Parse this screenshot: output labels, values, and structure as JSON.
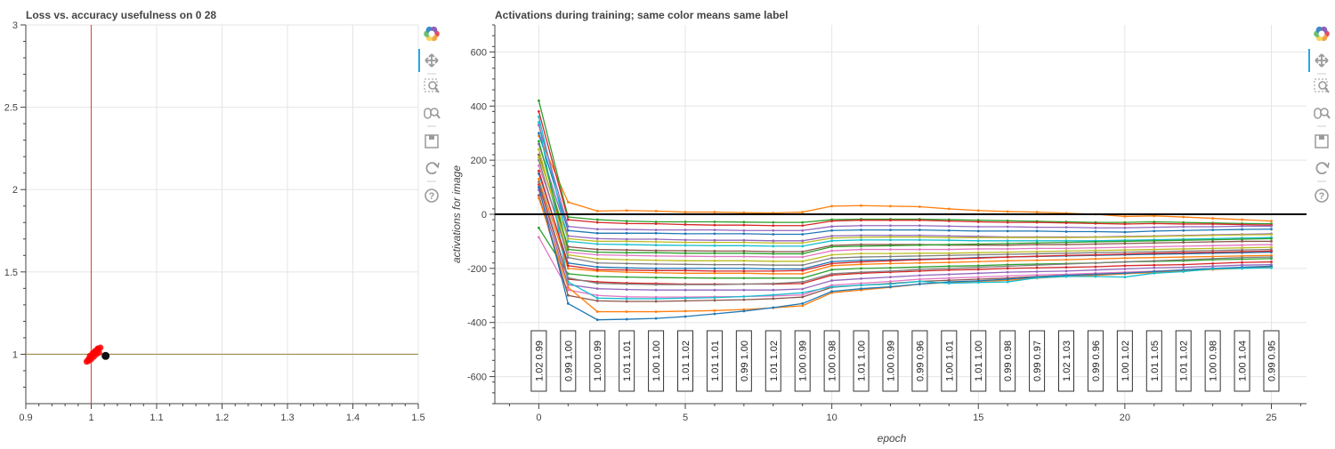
{
  "colors": {
    "grid": "#e5e5e5",
    "axis": "#444444",
    "loss_vline": "#d9534f",
    "acc_hline": "#a09050",
    "scatter": "#ff0000",
    "current_point": "#111111",
    "zero_line": "#000000",
    "active_tool": "#26aae1"
  },
  "toolbars": [
    {
      "tools": [
        "bokeh-logo-icon",
        "pan-icon",
        "box-zoom-icon",
        "wheel-zoom-icon",
        "save-icon",
        "reset-icon",
        "help-icon"
      ],
      "active": "pan-icon"
    },
    {
      "tools": [
        "bokeh-logo-icon",
        "pan-icon",
        "box-zoom-icon",
        "wheel-zoom-icon",
        "save-icon",
        "reset-icon",
        "help-icon"
      ],
      "active": "pan-icon"
    }
  ],
  "chart_data": [
    {
      "type": "scatter",
      "title": "Loss vs. accuracy usefulness on 0 28",
      "xlabel": "",
      "ylabel": "",
      "xlim": [
        0.9,
        1.5
      ],
      "ylim": [
        0.7,
        3.0
      ],
      "xticks": [
        "0.9",
        "1",
        "1.1",
        "1.2",
        "1.3",
        "1.4",
        "1.5"
      ],
      "yticks": [
        "1",
        "1.5",
        "2",
        "2.5",
        "3"
      ],
      "grid": true,
      "reference_lines": {
        "vertical_x": 1.0,
        "horizontal_y": 1.0
      },
      "points": [
        [
          0.993,
          0.955
        ],
        [
          0.995,
          0.965
        ],
        [
          0.997,
          0.975
        ],
        [
          0.999,
          0.985
        ],
        [
          1.001,
          0.992
        ],
        [
          1.003,
          1.0
        ],
        [
          1.005,
          1.008
        ],
        [
          1.007,
          1.015
        ],
        [
          1.009,
          1.022
        ],
        [
          1.011,
          1.03
        ],
        [
          0.996,
          0.96
        ],
        [
          1.0,
          0.97
        ],
        [
          1.004,
          0.985
        ],
        [
          1.008,
          1.0
        ],
        [
          1.012,
          1.01
        ],
        [
          0.998,
          0.99
        ],
        [
          1.002,
          1.005
        ],
        [
          1.006,
          1.02
        ],
        [
          1.01,
          1.035
        ],
        [
          1.014,
          1.04
        ]
      ],
      "current_point": [
        1.022,
        0.99
      ]
    },
    {
      "type": "line",
      "title": "Activations during training; same color means same label",
      "xlabel": "epoch",
      "ylabel": "activations for image",
      "xlim": [
        -1.5,
        26.2
      ],
      "ylim": [
        -700,
        700
      ],
      "xticks": [
        "0",
        "5",
        "10",
        "15",
        "20",
        "25"
      ],
      "yticks": [
        "-600",
        "-400",
        "-200",
        "0",
        "200",
        "400",
        "600"
      ],
      "grid": true,
      "zero_line_y": 0,
      "x": [
        0,
        1,
        2,
        3,
        4,
        5,
        6,
        7,
        8,
        9,
        10,
        11,
        12,
        13,
        14,
        15,
        16,
        17,
        18,
        19,
        20,
        21,
        22,
        23,
        24,
        25
      ],
      "annotations": {
        "x": [
          0,
          1,
          2,
          3,
          4,
          5,
          6,
          7,
          8,
          9,
          10,
          11,
          12,
          13,
          14,
          15,
          16,
          17,
          18,
          19,
          20,
          21,
          22,
          23,
          24,
          25
        ],
        "labels": [
          "1.02  0.99",
          "0.99  1.00",
          "1.00  0.99",
          "1.01  1.01",
          "1.00  1.00",
          "1.01  1.02",
          "1.01  1.01",
          "0.99  1.00",
          "1.01  1.02",
          "1.00  0.99",
          "1.00  0.98",
          "1.01  1.00",
          "1.00  0.99",
          "0.99  0.96",
          "1.00  1.01",
          "1.01  1.00",
          "0.99  0.98",
          "0.99  0.97",
          "1.02  1.03",
          "0.99  0.96",
          "1.00  1.02",
          "1.01  1.05",
          "1.01  1.02",
          "1.00  0.98",
          "1.00  1.04",
          "0.99  0.95"
        ]
      },
      "series": [
        {
          "color": "#ff7f0e",
          "values": [
            290,
            45,
            12,
            14,
            12,
            8,
            8,
            6,
            5,
            8,
            30,
            32,
            30,
            28,
            20,
            14,
            10,
            8,
            4,
            0,
            -8,
            -6,
            -10,
            -15,
            -20,
            -25
          ]
        },
        {
          "color": "#2ca02c",
          "values": [
            420,
            -10,
            -20,
            -25,
            -28,
            -28,
            -28,
            -29,
            -30,
            -30,
            -20,
            -18,
            -18,
            -18,
            -20,
            -22,
            -24,
            -26,
            -28,
            -30,
            -30,
            -28,
            -30,
            -32,
            -34,
            -35
          ]
        },
        {
          "color": "#d62728",
          "values": [
            380,
            -20,
            -30,
            -34,
            -35,
            -38,
            -40,
            -40,
            -42,
            -42,
            -25,
            -22,
            -22,
            -22,
            -25,
            -28,
            -30,
            -30,
            -32,
            -34,
            -36,
            -34,
            -36,
            -36,
            -38,
            -40
          ]
        },
        {
          "color": "#1f77b4",
          "values": [
            300,
            -60,
            -70,
            -70,
            -70,
            -72,
            -72,
            -72,
            -74,
            -74,
            -60,
            -58,
            -58,
            -58,
            -60,
            -62,
            -62,
            -62,
            -64,
            -64,
            -66,
            -62,
            -60,
            -58,
            -56,
            -55
          ]
        },
        {
          "color": "#9467bd",
          "values": [
            260,
            -80,
            -90,
            -92,
            -92,
            -95,
            -96,
            -96,
            -98,
            -98,
            -80,
            -78,
            -78,
            -78,
            -80,
            -82,
            -84,
            -84,
            -84,
            -84,
            -82,
            -80,
            -78,
            -76,
            -74,
            -72
          ]
        },
        {
          "color": "#17becf",
          "values": [
            360,
            -100,
            -110,
            -112,
            -114,
            -115,
            -116,
            -116,
            -118,
            -118,
            -98,
            -95,
            -95,
            -95,
            -96,
            -98,
            -98,
            -98,
            -98,
            -98,
            -96,
            -94,
            -92,
            -90,
            -88,
            -86
          ]
        },
        {
          "color": "#8c564b",
          "values": [
            220,
            -120,
            -130,
            -132,
            -134,
            -135,
            -136,
            -136,
            -138,
            -138,
            -115,
            -112,
            -112,
            -112,
            -114,
            -114,
            -114,
            -112,
            -112,
            -110,
            -108,
            -106,
            -104,
            -102,
            -100,
            -100
          ]
        },
        {
          "color": "#e377c2",
          "values": [
            180,
            -140,
            -150,
            -152,
            -154,
            -155,
            -156,
            -156,
            -158,
            -158,
            -135,
            -130,
            -130,
            -130,
            -130,
            -128,
            -128,
            -126,
            -126,
            -124,
            -122,
            -120,
            -118,
            -116,
            -114,
            -112
          ]
        },
        {
          "color": "#bcbd22",
          "values": [
            240,
            -150,
            -165,
            -168,
            -170,
            -172,
            -172,
            -172,
            -174,
            -174,
            -150,
            -145,
            -145,
            -144,
            -144,
            -142,
            -140,
            -138,
            -136,
            -134,
            -132,
            -130,
            -128,
            -126,
            -124,
            -122
          ]
        },
        {
          "color": "#7f7f7f",
          "values": [
            200,
            -160,
            -180,
            -182,
            -184,
            -185,
            -186,
            -186,
            -188,
            -188,
            -162,
            -158,
            -156,
            -154,
            -152,
            -150,
            -148,
            -146,
            -144,
            -142,
            -140,
            -138,
            -136,
            -134,
            -132,
            -130
          ]
        },
        {
          "color": "#1f77b4",
          "values": [
            150,
            -180,
            -195,
            -198,
            -200,
            -200,
            -200,
            -200,
            -202,
            -202,
            -175,
            -170,
            -168,
            -166,
            -164,
            -160,
            -158,
            -156,
            -154,
            -152,
            -150,
            -148,
            -146,
            -144,
            -142,
            -140
          ]
        },
        {
          "color": "#ff7f0e",
          "values": [
            130,
            -200,
            -210,
            -214,
            -216,
            -218,
            -218,
            -218,
            -220,
            -220,
            -190,
            -185,
            -182,
            -180,
            -178,
            -175,
            -172,
            -170,
            -168,
            -165,
            -162,
            -160,
            -158,
            -156,
            -154,
            -152
          ]
        },
        {
          "color": "#2ca02c",
          "values": [
            -50,
            -220,
            -230,
            -232,
            -234,
            -235,
            -236,
            -236,
            -236,
            -236,
            -205,
            -200,
            -198,
            -195,
            -192,
            -190,
            -186,
            -184,
            -182,
            -180,
            -176,
            -174,
            -172,
            -168,
            -166,
            -164
          ]
        },
        {
          "color": "#d62728",
          "values": [
            110,
            -240,
            -250,
            -254,
            -256,
            -258,
            -258,
            -258,
            -258,
            -256,
            -225,
            -218,
            -214,
            -210,
            -206,
            -204,
            -200,
            -198,
            -196,
            -194,
            -190,
            -188,
            -186,
            -182,
            -178,
            -176
          ]
        },
        {
          "color": "#9467bd",
          "values": [
            90,
            -260,
            -275,
            -278,
            -280,
            -280,
            -280,
            -280,
            -280,
            -276,
            -245,
            -238,
            -232,
            -226,
            -222,
            -218,
            -214,
            -212,
            -210,
            -206,
            -202,
            -198,
            -196,
            -192,
            -188,
            -186
          ]
        },
        {
          "color": "#e377c2",
          "values": [
            -85,
            -280,
            -300,
            -305,
            -306,
            -306,
            -305,
            -304,
            -302,
            -298,
            -262,
            -255,
            -248,
            -240,
            -236,
            -232,
            -228,
            -224,
            -222,
            -218,
            -214,
            -210,
            -206,
            -200,
            -196,
            -192
          ]
        },
        {
          "color": "#8c564b",
          "values": [
            70,
            -300,
            -320,
            -322,
            -322,
            -320,
            -318,
            -316,
            -312,
            -306,
            -270,
            -262,
            -256,
            -248,
            -244,
            -240,
            -236,
            -230,
            -226,
            -222,
            -218,
            -212,
            -208,
            -202,
            -198,
            -195
          ]
        },
        {
          "color": "#ff7f0e",
          "values": [
            60,
            -270,
            -360,
            -360,
            -360,
            -358,
            -356,
            -352,
            -346,
            -338,
            -290,
            -280,
            -270,
            -258,
            -252,
            -248,
            -244,
            -236,
            -230,
            -226,
            -220,
            -215,
            -210,
            -204,
            -200,
            -196
          ]
        },
        {
          "color": "#1f77b4",
          "values": [
            100,
            -330,
            -390,
            -388,
            -385,
            -378,
            -368,
            -358,
            -345,
            -330,
            -285,
            -275,
            -268,
            -258,
            -250,
            -246,
            -240,
            -232,
            -226,
            -222,
            -218,
            -212,
            -206,
            -200,
            -196,
            -192
          ]
        },
        {
          "color": "#17becf",
          "values": [
            340,
            -250,
            -310,
            -312,
            -312,
            -310,
            -308,
            -304,
            -298,
            -290,
            -268,
            -262,
            -258,
            -248,
            -255,
            -252,
            -250,
            -235,
            -230,
            -230,
            -232,
            -218,
            -212,
            -202,
            -200,
            -198
          ]
        },
        {
          "color": "#bcbd22",
          "values": [
            210,
            -90,
            -100,
            -100,
            -102,
            -104,
            -104,
            -104,
            -106,
            -106,
            -88,
            -85,
            -84,
            -84,
            -86,
            -86,
            -86,
            -86,
            -86,
            -85,
            -84,
            -82,
            -80,
            -78,
            -76,
            -75
          ]
        },
        {
          "color": "#2ca02c",
          "values": [
            270,
            -130,
            -140,
            -142,
            -142,
            -144,
            -144,
            -144,
            -146,
            -146,
            -120,
            -118,
            -116,
            -114,
            -112,
            -110,
            -108,
            -106,
            -104,
            -102,
            -100,
            -98,
            -96,
            -94,
            -92,
            -90
          ]
        },
        {
          "color": "#d62728",
          "values": [
            160,
            -190,
            -205,
            -206,
            -208,
            -208,
            -210,
            -210,
            -210,
            -208,
            -182,
            -176,
            -172,
            -168,
            -165,
            -162,
            -158,
            -155,
            -152,
            -150,
            -147,
            -144,
            -142,
            -140,
            -138,
            -136
          ]
        },
        {
          "color": "#7f7f7f",
          "values": [
            120,
            -235,
            -255,
            -258,
            -260,
            -260,
            -260,
            -258,
            -256,
            -250,
            -220,
            -214,
            -210,
            -204,
            -200,
            -196,
            -192,
            -188,
            -184,
            -180,
            -176,
            -172,
            -168,
            -164,
            -160,
            -158
          ]
        },
        {
          "color": "#9467bd",
          "values": [
            330,
            -45,
            -55,
            -56,
            -58,
            -58,
            -58,
            -60,
            -60,
            -60,
            -45,
            -42,
            -42,
            -42,
            -44,
            -46,
            -46,
            -48,
            -48,
            -50,
            -50,
            -48,
            -46,
            -46,
            -44,
            -44
          ]
        }
      ]
    }
  ]
}
